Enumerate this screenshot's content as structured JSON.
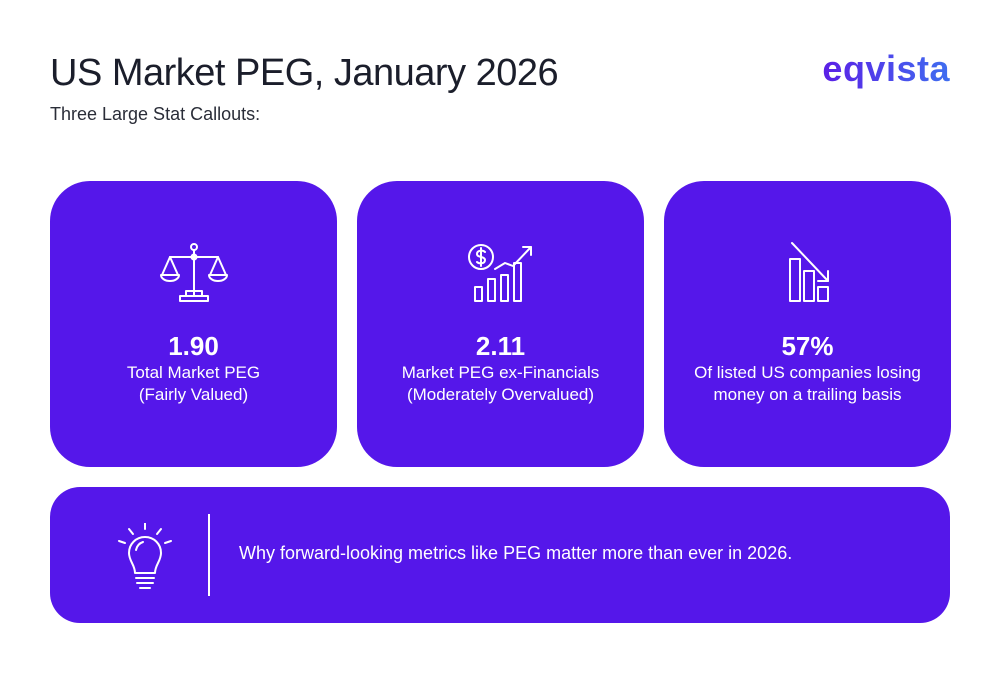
{
  "header": {
    "title": "US Market PEG, January 2026",
    "subtitle": "Three Large Stat Callouts:",
    "logo": "eqvista"
  },
  "stats": [
    {
      "icon": "scales-icon",
      "value": "1.90",
      "label_line1": "Total Market PEG",
      "label_line2": "(Fairly Valued)"
    },
    {
      "icon": "dollar-growth-chart-icon",
      "value": "2.11",
      "label_line1": "Market PEG ex-Financials",
      "label_line2": "(Moderately Overvalued)"
    },
    {
      "icon": "declining-bar-chart-icon",
      "value": "57%",
      "label_line1": "Of listed US companies losing",
      "label_line2": "money on a trailing basis"
    }
  ],
  "banner": {
    "icon": "lightbulb-icon",
    "text": "Why forward-looking metrics like PEG matter more than ever in 2026."
  },
  "colors": {
    "accent": "#5517ea",
    "logo_gradient_start": "#5b1fe6",
    "logo_gradient_end": "#3f6ef0",
    "text": "#1b1e2b"
  }
}
